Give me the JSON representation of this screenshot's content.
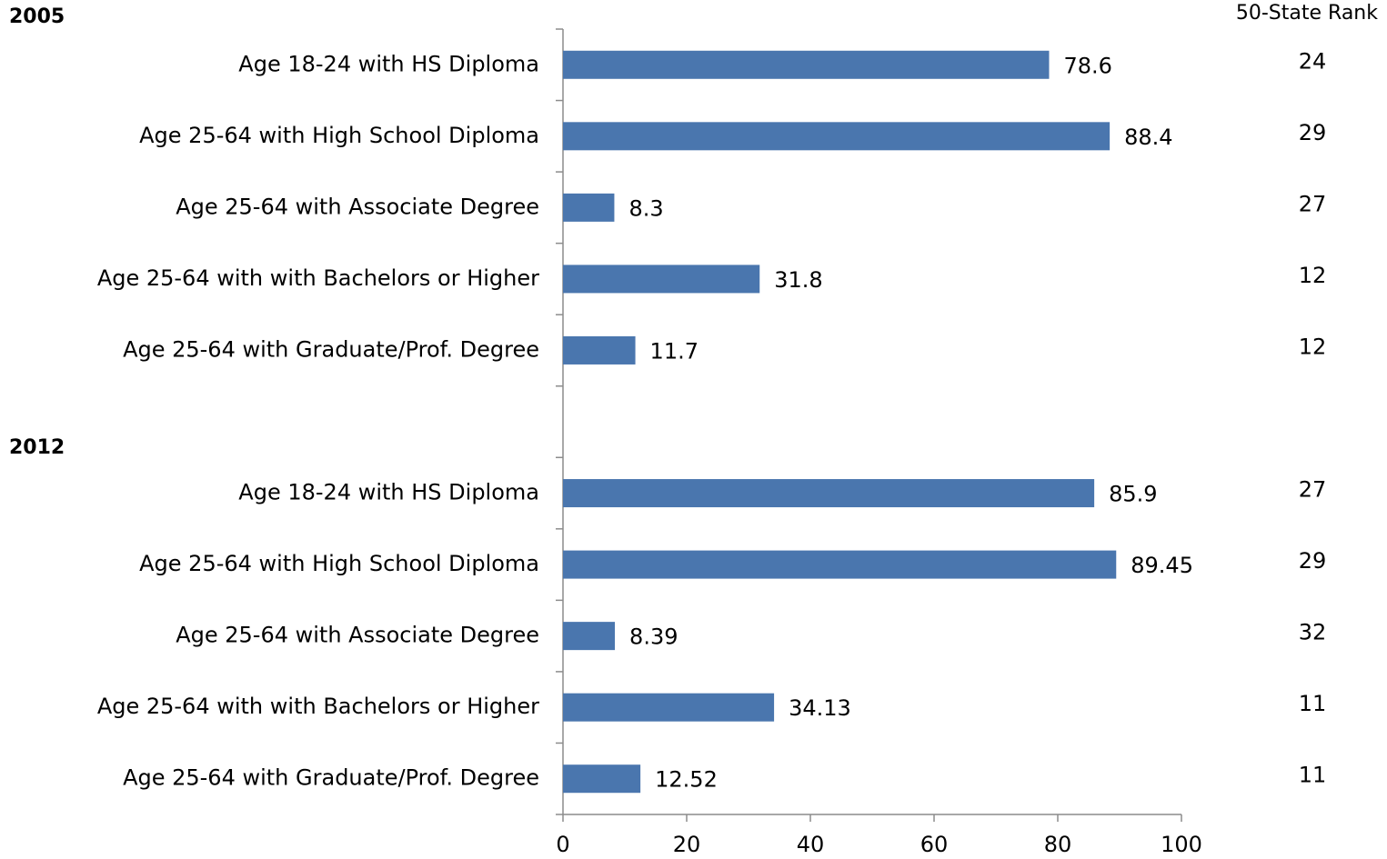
{
  "chart_data": {
    "type": "bar",
    "orientation": "horizontal",
    "rank_header": "50-State Rank",
    "xlim": [
      0,
      100
    ],
    "x_ticks": [
      "0",
      "20",
      "40",
      "60",
      "80",
      "100"
    ],
    "bar_color": "#4a76ae",
    "groups": [
      {
        "name": "2005",
        "categories": [
          "Age 18-24 with HS Diploma",
          "Age 25-64 with High School Diploma",
          "Age 25-64 with Associate Degree",
          "Age 25-64 with with Bachelors or Higher",
          "Age 25-64 with Graduate/Prof. Degree"
        ],
        "values": [
          78.6,
          88.4,
          8.3,
          31.8,
          11.7
        ],
        "value_labels": [
          "78.6",
          "88.4",
          "8.3",
          "31.8",
          "11.7"
        ],
        "ranks": [
          "24",
          "29",
          "27",
          "12",
          "12"
        ]
      },
      {
        "name": "2012",
        "categories": [
          "Age 18-24 with HS Diploma",
          "Age 25-64 with High School Diploma",
          "Age 25-64 with Associate Degree",
          "Age 25-64 with with Bachelors or Higher",
          "Age 25-64 with Graduate/Prof. Degree"
        ],
        "values": [
          85.9,
          89.45,
          8.39,
          34.13,
          12.52
        ],
        "value_labels": [
          "85.9",
          "89.45",
          "8.39",
          "34.13",
          "12.52"
        ],
        "ranks": [
          "27",
          "29",
          "32",
          "11",
          "11"
        ]
      }
    ]
  }
}
